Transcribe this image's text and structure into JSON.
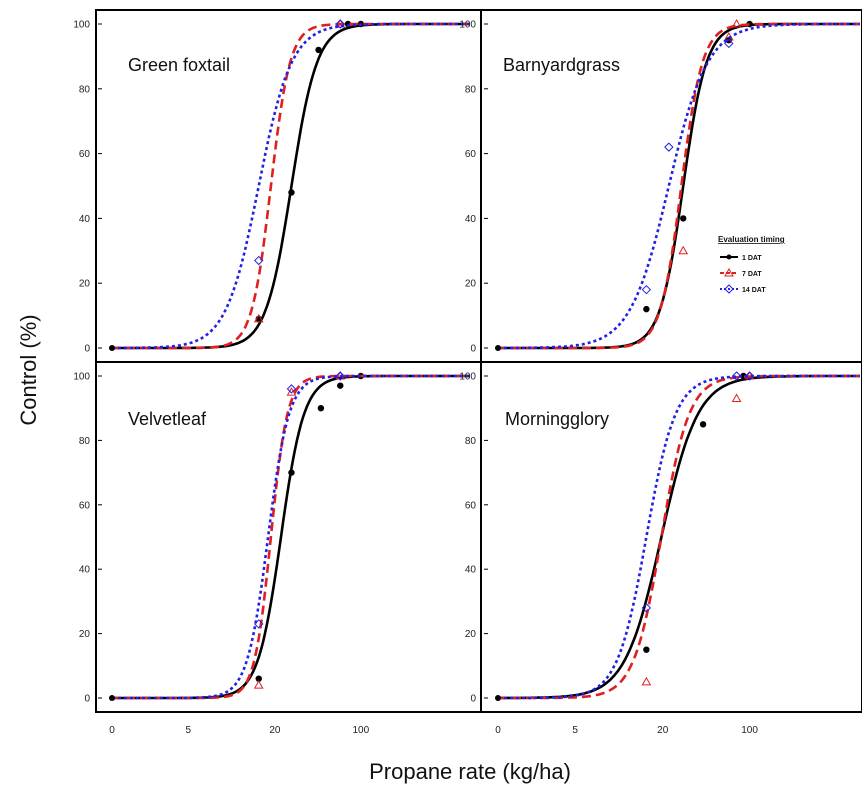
{
  "figure": {
    "ylabel": "Control (%)",
    "xlabel": "Propane rate (kg/ha)"
  },
  "legend": {
    "title": "Evaluation timing",
    "items": [
      "1  DAT",
      "7  DAT",
      "14 DAT"
    ]
  },
  "colors": {
    "1 DAT": "#000000",
    "7 DAT": "#e02020",
    "14 DAT": "#2020e8"
  },
  "chart_data": [
    {
      "type": "line",
      "title": "Green foxtail",
      "x_scale": "log (0 shown at left)",
      "x_ticks": [
        "0",
        "5",
        "20",
        "100"
      ],
      "y_ticks": [
        "0",
        "20",
        "40",
        "60",
        "80",
        "100"
      ],
      "ylim": [
        0,
        100
      ],
      "series": [
        {
          "name": "1  DAT",
          "style": "solid",
          "ed50": 30,
          "slope": 4.5,
          "points": [
            {
              "x": 17,
              "y": 9
            },
            {
              "x": 30,
              "y": 48
            },
            {
              "x": 48,
              "y": 92
            },
            {
              "x": 80,
              "y": 100
            },
            {
              "x": 100,
              "y": 100
            }
          ]
        },
        {
          "name": "7  DAT",
          "style": "dashed",
          "ed50": 21,
          "slope": 6.0,
          "points": [
            {
              "x": 17,
              "y": 9
            },
            {
              "x": 70,
              "y": 100
            }
          ]
        },
        {
          "name": "14 DAT",
          "style": "dotted",
          "ed50": 17,
          "slope": 3.5,
          "points": [
            {
              "x": 17,
              "y": 27
            },
            {
              "x": 70,
              "y": 100
            }
          ]
        }
      ]
    },
    {
      "type": "line",
      "title": "Barnyardgrass",
      "x_scale": "log (0 shown at left)",
      "x_ticks": [
        "0",
        "5",
        "20",
        "100"
      ],
      "y_ticks": [
        "0",
        "20",
        "40",
        "60",
        "80",
        "100"
      ],
      "ylim": [
        0,
        100
      ],
      "series": [
        {
          "name": "1  DAT",
          "style": "solid",
          "ed50": 32,
          "slope": 5.0,
          "points": [
            {
              "x": 17,
              "y": 12
            },
            {
              "x": 32,
              "y": 40
            },
            {
              "x": 70,
              "y": 95
            },
            {
              "x": 100,
              "y": 100
            }
          ]
        },
        {
          "name": "7  DAT",
          "style": "dashed",
          "ed50": 31,
          "slope": 5.5,
          "points": [
            {
              "x": 32,
              "y": 30
            },
            {
              "x": 70,
              "y": 96
            },
            {
              "x": 80,
              "y": 100
            }
          ]
        },
        {
          "name": "14 DAT",
          "style": "dotted",
          "ed50": 25,
          "slope": 3.0,
          "points": [
            {
              "x": 17,
              "y": 18
            },
            {
              "x": 25,
              "y": 62
            },
            {
              "x": 70,
              "y": 94
            }
          ]
        }
      ]
    },
    {
      "type": "line",
      "title": "Velvetleaf",
      "x_scale": "log (0 shown at left)",
      "x_ticks": [
        "0",
        "5",
        "20",
        "100"
      ],
      "y_ticks": [
        "0",
        "20",
        "40",
        "60",
        "80",
        "100"
      ],
      "ylim": [
        0,
        100
      ],
      "series": [
        {
          "name": "1  DAT",
          "style": "solid",
          "ed50": 25,
          "slope": 5.0,
          "points": [
            {
              "x": 17,
              "y": 6
            },
            {
              "x": 30,
              "y": 70
            },
            {
              "x": 50,
              "y": 90
            },
            {
              "x": 70,
              "y": 97
            },
            {
              "x": 100,
              "y": 100
            }
          ]
        },
        {
          "name": "7  DAT",
          "style": "dashed",
          "ed50": 21,
          "slope": 7.0,
          "points": [
            {
              "x": 17,
              "y": 4
            },
            {
              "x": 30,
              "y": 95
            },
            {
              "x": 70,
              "y": 100
            }
          ]
        },
        {
          "name": "14 DAT",
          "style": "dotted",
          "ed50": 20,
          "slope": 5.5,
          "points": [
            {
              "x": 17,
              "y": 23
            },
            {
              "x": 30,
              "y": 96
            },
            {
              "x": 70,
              "y": 100
            }
          ]
        }
      ]
    },
    {
      "type": "line",
      "title": "Morningglory",
      "x_scale": "log (0 shown at left)",
      "x_ticks": [
        "0",
        "5",
        "20",
        "100"
      ],
      "y_ticks": [
        "0",
        "20",
        "40",
        "60",
        "80",
        "100"
      ],
      "ylim": [
        0,
        100
      ],
      "series": [
        {
          "name": "1  DAT",
          "style": "solid",
          "ed50": 22,
          "slope": 3.2,
          "points": [
            {
              "x": 17,
              "y": 15
            },
            {
              "x": 45,
              "y": 85
            },
            {
              "x": 90,
              "y": 100
            }
          ]
        },
        {
          "name": "7  DAT",
          "style": "dashed",
          "ed50": 22,
          "slope": 4.2,
          "points": [
            {
              "x": 17,
              "y": 5
            },
            {
              "x": 80,
              "y": 93
            },
            {
              "x": 100,
              "y": 100
            }
          ]
        },
        {
          "name": "14 DAT",
          "style": "dotted",
          "ed50": 17,
          "slope": 4.0,
          "points": [
            {
              "x": 17,
              "y": 28
            },
            {
              "x": 80,
              "y": 100
            },
            {
              "x": 100,
              "y": 100
            }
          ]
        }
      ]
    }
  ]
}
